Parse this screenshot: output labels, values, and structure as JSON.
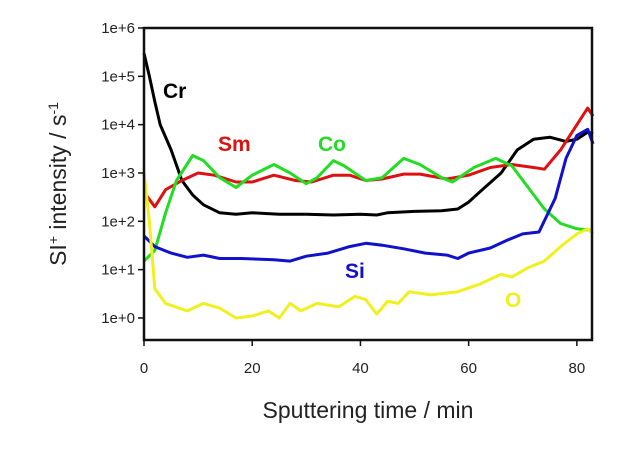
{
  "chart_data": {
    "type": "line",
    "title": "",
    "xlabel": "Sputtering time / min",
    "ylabel": {
      "main": "SI",
      "sup1": "+",
      "rest": " intensity / s",
      "sup2": "-1"
    },
    "xlim": [
      0,
      82.8
    ],
    "ylim": [
      0.35,
      1000000
    ],
    "yscale": "log",
    "grid": false,
    "x_ticks": [
      0,
      20,
      40,
      60,
      80
    ],
    "x_tick_labels": [
      "0",
      "20",
      "40",
      "60",
      "80"
    ],
    "y_ticks": [
      1000000,
      100000,
      10000,
      1000,
      100,
      10,
      1
    ],
    "y_tick_labels": [
      "1e+6",
      "1e+5",
      "1e+4",
      "1e+3",
      "1e+2",
      "1e+1",
      "1e+0"
    ],
    "series": [
      {
        "name": "Cr",
        "color": "#000000",
        "x": [
          0,
          1,
          2,
          3,
          5,
          7,
          9,
          11,
          14,
          17,
          20,
          25,
          30,
          35,
          40,
          43,
          45,
          50,
          55,
          58,
          60,
          62,
          66,
          69,
          72,
          75,
          78,
          80,
          82,
          83
        ],
        "y": [
          300000,
          100000,
          30000,
          10000,
          3000,
          700,
          350,
          220,
          150,
          140,
          150,
          140,
          140,
          135,
          140,
          135,
          150,
          160,
          165,
          180,
          250,
          400,
          1000,
          3000,
          5000,
          5500,
          4500,
          5000,
          7000,
          6500
        ]
      },
      {
        "name": "Sm",
        "color": "#dd1111",
        "x": [
          0,
          2,
          4,
          7,
          10,
          13,
          17,
          20,
          24,
          28,
          31,
          35,
          38,
          41,
          44,
          48,
          51,
          56,
          60,
          64,
          68,
          72,
          74,
          77,
          80,
          82,
          83
        ],
        "y": [
          400,
          200,
          450,
          700,
          1000,
          900,
          650,
          650,
          900,
          700,
          650,
          900,
          900,
          700,
          750,
          950,
          950,
          750,
          900,
          1300,
          1500,
          1300,
          1200,
          3000,
          10000,
          22000,
          15000
        ]
      },
      {
        "name": "Co",
        "color": "#22dd22",
        "x": [
          0,
          2,
          4,
          6,
          9,
          11,
          14,
          17,
          20,
          24,
          27,
          30,
          32,
          35,
          37,
          41,
          44,
          48,
          51,
          55,
          57,
          61,
          65,
          68,
          71,
          74,
          77,
          80,
          83
        ],
        "y": [
          15,
          25,
          150,
          700,
          2300,
          1800,
          800,
          500,
          900,
          1500,
          1000,
          600,
          800,
          1800,
          1400,
          700,
          800,
          2000,
          1500,
          800,
          650,
          1300,
          2000,
          1400,
          500,
          180,
          90,
          70,
          65
        ]
      },
      {
        "name": "Si",
        "color": "#1111cc",
        "x": [
          0,
          2,
          5,
          8,
          11,
          14,
          18,
          24,
          27,
          30,
          34,
          38,
          41,
          44,
          48,
          52,
          56,
          58,
          60,
          64,
          67,
          70,
          73,
          76,
          78,
          80,
          82,
          83
        ],
        "y": [
          50,
          30,
          22,
          18,
          20,
          17,
          17,
          16,
          15,
          19,
          22,
          30,
          35,
          32,
          27,
          22,
          20,
          17,
          22,
          28,
          40,
          55,
          60,
          300,
          2000,
          6000,
          8000,
          4000
        ]
      },
      {
        "name": "O",
        "color": "#f0f020",
        "x": [
          0,
          1,
          2,
          4,
          8,
          11,
          14,
          17,
          20,
          23,
          25,
          27,
          29,
          32,
          36,
          39,
          41,
          43,
          45,
          47,
          49,
          53,
          58,
          62,
          66,
          68,
          71,
          74,
          77,
          80,
          82,
          83
        ],
        "y": [
          1000,
          100,
          4,
          2,
          1.4,
          2,
          1.6,
          1,
          1.1,
          1.4,
          1,
          2,
          1.4,
          2,
          1.7,
          2.8,
          2.4,
          1.2,
          2.2,
          2,
          3.5,
          3,
          3.5,
          5,
          8,
          7,
          11,
          15,
          30,
          55,
          70,
          55
        ]
      }
    ],
    "annotations": [
      {
        "text": "Cr",
        "color": "#000000"
      },
      {
        "text": "Sm",
        "color": "#dd1111"
      },
      {
        "text": "Co",
        "color": "#22dd22"
      },
      {
        "text": "Si",
        "color": "#1111cc"
      },
      {
        "text": "O",
        "color": "#f0f020"
      }
    ]
  }
}
